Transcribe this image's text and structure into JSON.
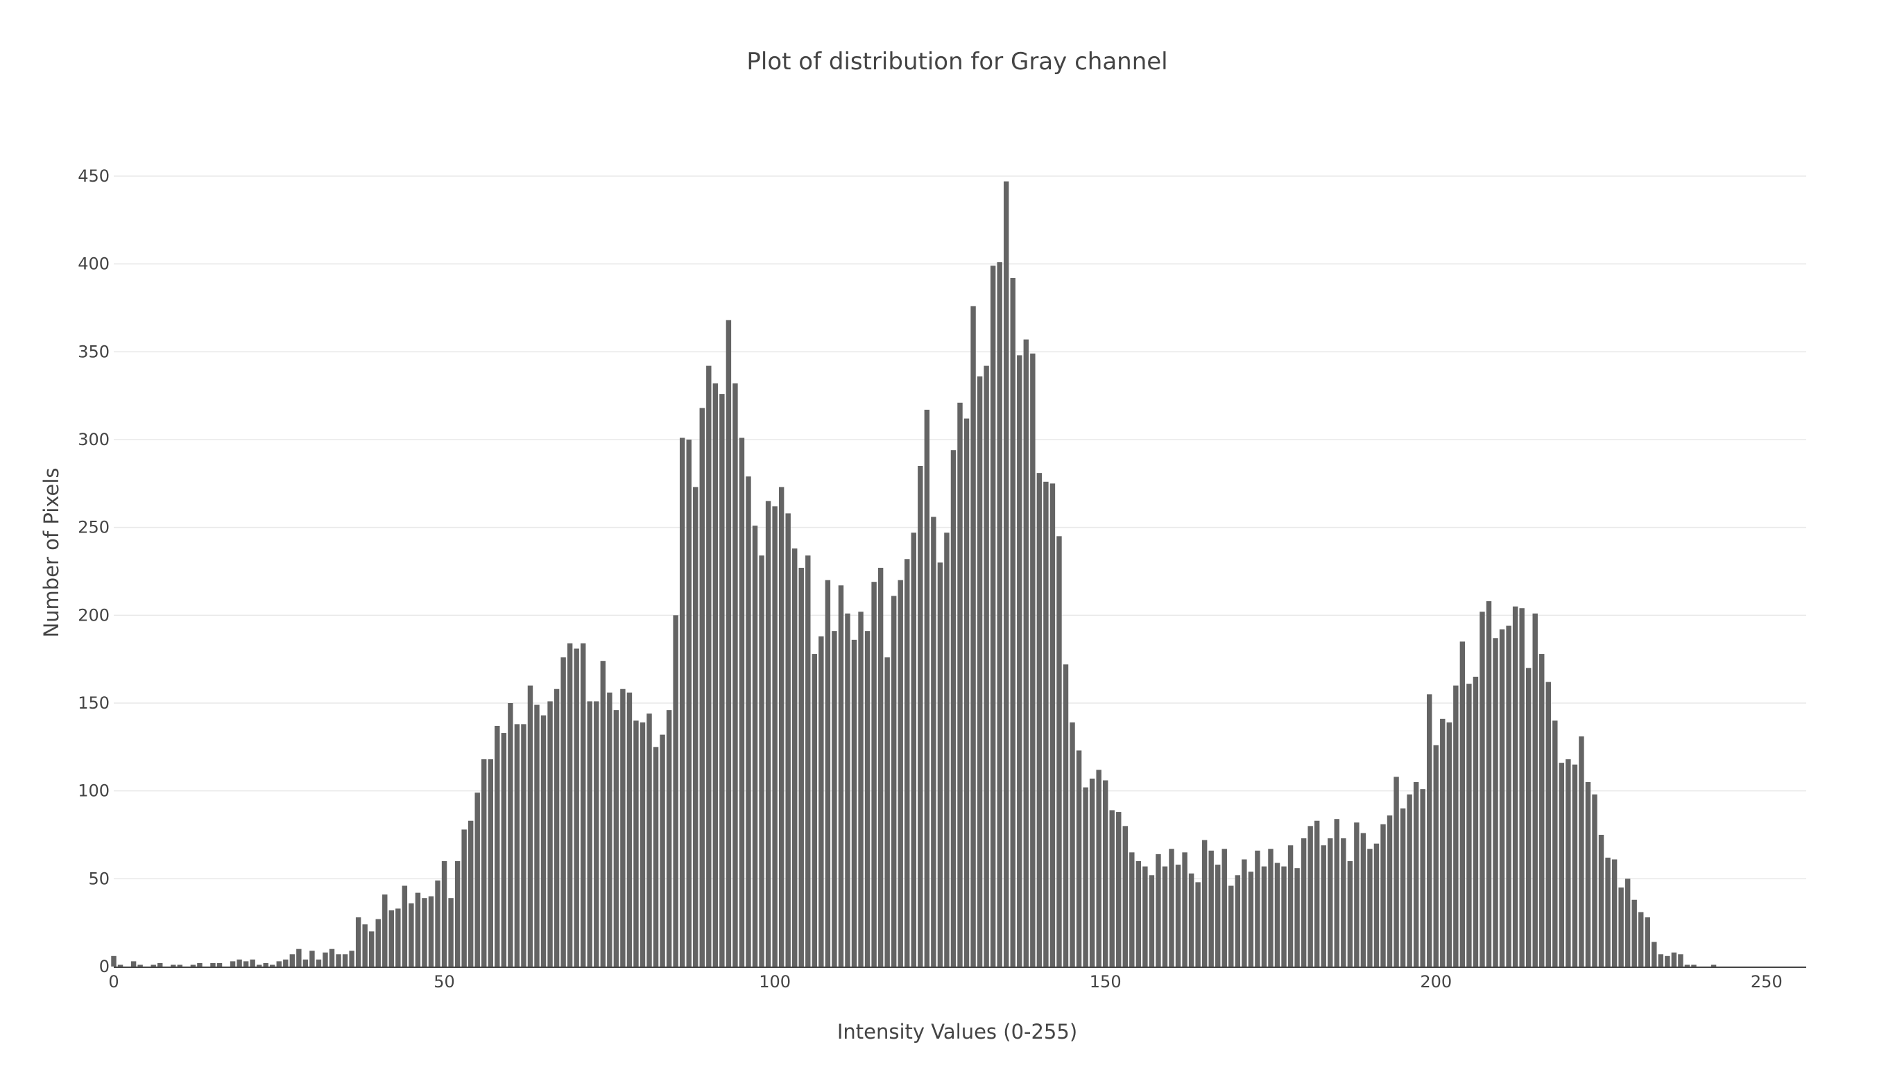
{
  "chart_data": {
    "type": "bar",
    "title": "Plot of distribution for Gray channel",
    "xlabel": "Intensity Values (0-255)",
    "ylabel": "Number of Pixels",
    "xlim": [
      0,
      256
    ],
    "ylim": [
      0,
      450
    ],
    "xticks": [
      0,
      50,
      100,
      150,
      200,
      250
    ],
    "yticks": [
      0,
      50,
      100,
      150,
      200,
      250,
      300,
      350,
      400,
      450
    ],
    "grid": true,
    "legend": "none",
    "bar_color": "#646464",
    "series": [
      {
        "values": [
          6,
          1,
          0,
          3,
          1,
          0,
          1,
          2,
          0,
          1,
          1,
          0,
          1,
          2,
          0,
          2,
          2,
          0,
          3,
          4,
          3,
          4,
          1,
          2,
          1,
          3,
          4,
          7,
          10,
          4,
          9,
          4,
          8,
          10,
          7,
          7,
          9,
          28,
          24,
          20,
          27,
          41,
          32,
          33,
          46,
          36,
          42,
          39,
          40,
          49,
          60,
          39,
          60,
          78,
          83,
          99,
          118,
          118,
          137,
          133,
          150,
          138,
          138,
          160,
          149,
          143,
          151,
          158,
          176,
          184,
          181,
          184,
          151,
          151,
          174,
          156,
          146,
          158,
          156,
          140,
          139,
          144,
          125,
          132,
          146,
          200,
          301,
          300,
          273,
          318,
          342,
          332,
          326,
          368,
          332,
          301,
          279,
          251,
          234,
          265,
          262,
          273,
          258,
          238,
          227,
          234,
          178,
          188,
          220,
          191,
          217,
          201,
          186,
          202,
          191,
          219,
          227,
          176,
          211,
          220,
          232,
          247,
          285,
          317,
          256,
          230,
          247,
          294,
          321,
          312,
          376,
          336,
          342,
          399,
          401,
          447,
          392,
          348,
          357,
          349,
          281,
          276,
          275,
          245,
          172,
          139,
          123,
          102,
          107,
          112,
          106,
          89,
          88,
          80,
          65,
          60,
          57,
          52,
          64,
          57,
          67,
          58,
          65,
          53,
          48,
          72,
          66,
          58,
          67,
          46,
          52,
          61,
          54,
          66,
          57,
          67,
          59,
          57,
          69,
          56,
          73,
          80,
          83,
          69,
          73,
          84,
          73,
          60,
          82,
          76,
          67,
          70,
          81,
          86,
          108,
          90,
          98,
          105,
          101,
          155,
          126,
          141,
          139,
          160,
          185,
          161,
          165,
          202,
          208,
          187,
          192,
          194,
          205,
          204,
          170,
          201,
          178,
          162,
          140,
          116,
          118,
          115,
          131,
          105,
          98,
          75,
          62,
          61,
          45,
          50,
          38,
          31,
          28,
          14,
          7,
          6,
          8,
          7,
          1,
          1,
          0,
          0,
          1,
          0,
          0,
          0,
          0,
          0,
          0,
          0,
          0,
          0,
          0,
          0,
          0,
          0,
          0,
          0,
          0,
          0
        ]
      }
    ]
  }
}
